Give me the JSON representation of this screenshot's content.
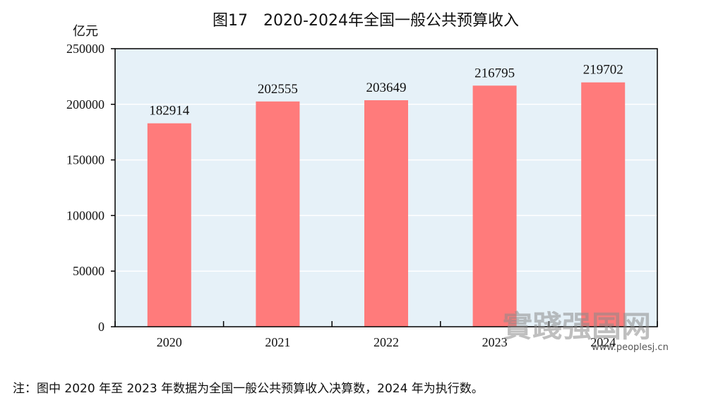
{
  "chart_data": {
    "type": "bar",
    "title": "图17　2020-2024年全国一般公共预算收入",
    "unit": "亿元",
    "categories": [
      "2020",
      "2021",
      "2022",
      "2023",
      "2024"
    ],
    "values": [
      182914,
      202555,
      203649,
      216795,
      219702
    ],
    "data_labels": [
      "182914",
      "202555",
      "203649",
      "216795",
      "219702"
    ],
    "ylim": [
      0,
      250000
    ],
    "yticks": [
      "0",
      "50000",
      "100000",
      "150000",
      "200000",
      "250000"
    ],
    "grid": true,
    "legend": "none",
    "note": "注：图中 2020 年至 2023 年数据为全国一般公共预算收入决算数，2024 年为执行数。"
  },
  "colors": {
    "bar": "#ff7b7b",
    "plot_background": "#e6f1f8",
    "grid": "#ffffff",
    "axis": "#000000"
  },
  "watermark": {
    "text": "實踐强国网",
    "url": "www.peoplesj.cn"
  }
}
